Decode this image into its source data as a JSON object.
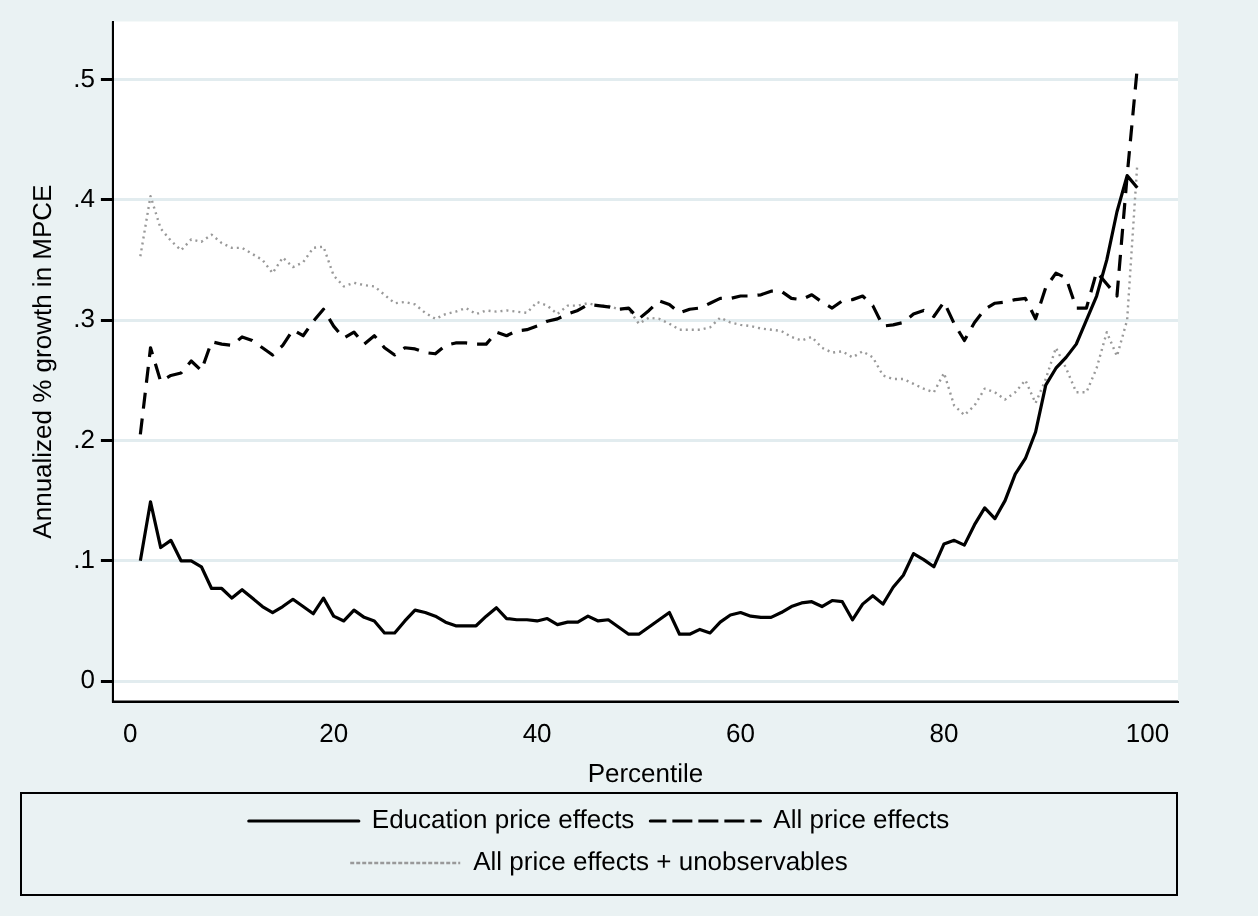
{
  "chart_data": {
    "type": "line",
    "xlabel": "Percentile",
    "ylabel": "Annualized % growth in MPCE",
    "x": [
      1,
      2,
      3,
      4,
      5,
      6,
      7,
      8,
      9,
      10,
      11,
      12,
      13,
      14,
      15,
      16,
      17,
      18,
      19,
      20,
      21,
      22,
      23,
      24,
      25,
      26,
      27,
      28,
      29,
      30,
      31,
      32,
      33,
      34,
      35,
      36,
      37,
      38,
      39,
      40,
      41,
      42,
      43,
      44,
      45,
      46,
      47,
      48,
      49,
      50,
      51,
      52,
      53,
      54,
      55,
      56,
      57,
      58,
      59,
      60,
      61,
      62,
      63,
      64,
      65,
      66,
      67,
      68,
      69,
      70,
      71,
      72,
      73,
      74,
      75,
      76,
      77,
      78,
      79,
      80,
      81,
      82,
      83,
      84,
      85,
      86,
      87,
      88,
      89,
      90,
      91,
      92,
      93,
      94,
      95,
      96,
      97,
      98,
      99
    ],
    "xlim": [
      -1.7,
      103
    ],
    "xticks": [
      0,
      20,
      40,
      60,
      80,
      100
    ],
    "ylim": [
      -0.017,
      0.548
    ],
    "yticks": [
      {
        "value": 0,
        "label": "0"
      },
      {
        "value": 0.1,
        "label": ".1"
      },
      {
        "value": 0.2,
        "label": ".2"
      },
      {
        "value": 0.3,
        "label": ".3"
      },
      {
        "value": 0.4,
        "label": ".4"
      },
      {
        "value": 0.5,
        "label": ".5"
      }
    ],
    "grid": "y",
    "legend": "bottom",
    "marker": "none",
    "series": [
      {
        "name": "Education price effects",
        "color": "#000000",
        "line_style": "solid",
        "values": [
          0.1,
          0.149,
          0.111,
          0.117,
          0.1,
          0.1,
          0.095,
          0.077,
          0.077,
          0.069,
          0.076,
          0.069,
          0.062,
          0.057,
          0.062,
          0.068,
          0.062,
          0.056,
          0.069,
          0.054,
          0.05,
          0.059,
          0.053,
          0.05,
          0.04,
          0.04,
          0.05,
          0.059,
          0.057,
          0.054,
          0.049,
          0.046,
          0.046,
          0.046,
          0.054,
          0.061,
          0.052,
          0.051,
          0.051,
          0.05,
          0.052,
          0.047,
          0.049,
          0.049,
          0.054,
          0.05,
          0.051,
          0.045,
          0.039,
          0.039,
          0.045,
          0.051,
          0.057,
          0.039,
          0.039,
          0.043,
          0.04,
          0.049,
          0.055,
          0.057,
          0.054,
          0.053,
          0.053,
          0.057,
          0.062,
          0.065,
          0.066,
          0.062,
          0.067,
          0.066,
          0.051,
          0.064,
          0.071,
          0.064,
          0.078,
          0.088,
          0.106,
          0.101,
          0.095,
          0.114,
          0.117,
          0.113,
          0.13,
          0.144,
          0.135,
          0.15,
          0.172,
          0.185,
          0.207,
          0.246,
          0.26,
          0.269,
          0.28,
          0.3,
          0.32,
          0.35,
          0.39,
          0.42,
          0.41
        ]
      },
      {
        "name": "All price effects",
        "color": "#000000",
        "line_style": "dashed",
        "values": [
          0.205,
          0.277,
          0.249,
          0.254,
          0.256,
          0.266,
          0.258,
          0.282,
          0.28,
          0.279,
          0.286,
          0.283,
          0.277,
          0.271,
          0.279,
          0.292,
          0.287,
          0.299,
          0.309,
          0.295,
          0.285,
          0.29,
          0.28,
          0.287,
          0.277,
          0.271,
          0.277,
          0.276,
          0.273,
          0.272,
          0.279,
          0.281,
          0.281,
          0.28,
          0.28,
          0.29,
          0.287,
          0.291,
          0.292,
          0.295,
          0.299,
          0.301,
          0.305,
          0.308,
          0.313,
          0.312,
          0.311,
          0.309,
          0.31,
          0.301,
          0.308,
          0.316,
          0.313,
          0.306,
          0.309,
          0.31,
          0.314,
          0.318,
          0.318,
          0.32,
          0.32,
          0.321,
          0.324,
          0.324,
          0.318,
          0.317,
          0.321,
          0.315,
          0.31,
          0.316,
          0.317,
          0.32,
          0.312,
          0.295,
          0.296,
          0.298,
          0.305,
          0.308,
          0.303,
          0.315,
          0.297,
          0.283,
          0.298,
          0.309,
          0.314,
          0.315,
          0.317,
          0.318,
          0.301,
          0.327,
          0.339,
          0.335,
          0.31,
          0.31,
          0.34,
          0.33,
          0.32,
          0.42,
          0.51
        ]
      },
      {
        "name": "All price effects + unobservables",
        "color": "#999999",
        "line_style": "dotted",
        "values": [
          0.353,
          0.403,
          0.376,
          0.366,
          0.358,
          0.367,
          0.365,
          0.371,
          0.364,
          0.36,
          0.36,
          0.355,
          0.35,
          0.339,
          0.352,
          0.344,
          0.348,
          0.36,
          0.361,
          0.337,
          0.328,
          0.331,
          0.329,
          0.328,
          0.321,
          0.314,
          0.315,
          0.313,
          0.306,
          0.301,
          0.305,
          0.307,
          0.31,
          0.305,
          0.308,
          0.307,
          0.308,
          0.307,
          0.306,
          0.315,
          0.312,
          0.305,
          0.312,
          0.312,
          0.314,
          0.312,
          0.312,
          0.309,
          0.309,
          0.297,
          0.302,
          0.301,
          0.297,
          0.292,
          0.292,
          0.292,
          0.294,
          0.302,
          0.298,
          0.296,
          0.295,
          0.293,
          0.292,
          0.291,
          0.286,
          0.283,
          0.286,
          0.277,
          0.273,
          0.274,
          0.269,
          0.274,
          0.269,
          0.254,
          0.251,
          0.251,
          0.247,
          0.243,
          0.24,
          0.256,
          0.229,
          0.221,
          0.229,
          0.243,
          0.24,
          0.234,
          0.24,
          0.25,
          0.231,
          0.251,
          0.277,
          0.26,
          0.24,
          0.24,
          0.26,
          0.29,
          0.27,
          0.3,
          0.43
        ]
      }
    ]
  }
}
